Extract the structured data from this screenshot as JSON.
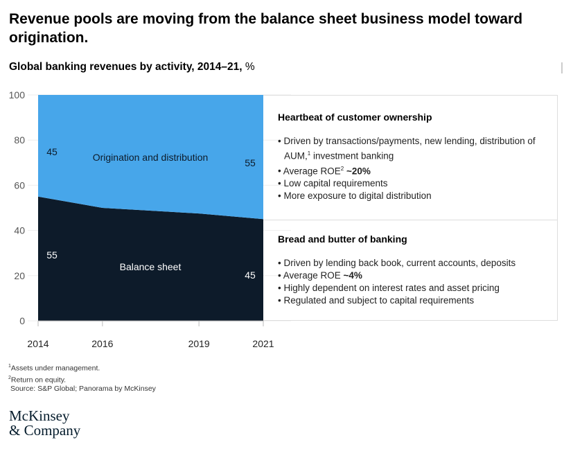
{
  "title": "Revenue pools are moving from the balance sheet business model toward origination.",
  "subtitle": "Global banking revenues by activity, 2014–21,",
  "subtitle_unit": "%",
  "chart_data": {
    "type": "area",
    "title": "Global banking revenues by activity, 2014–21, %",
    "x": [
      "2014",
      "2016",
      "2019",
      "2021"
    ],
    "x_numeric": [
      2014,
      2016,
      2019,
      2021
    ],
    "ylim": [
      0,
      100
    ],
    "yticks": [
      "0",
      "20",
      "40",
      "60",
      "80",
      "100"
    ],
    "series": [
      {
        "name": "Balance sheet",
        "values": [
          55,
          50,
          47.5,
          45
        ],
        "color": "#0d1b2a"
      },
      {
        "name": "Origination and distribution",
        "values": [
          45,
          50,
          52.5,
          55
        ],
        "color": "#47a6ea"
      }
    ],
    "labels": {
      "orig_start": "45",
      "orig_end": "55",
      "bs_start": "55",
      "bs_end": "45"
    },
    "grid": true
  },
  "panels": [
    {
      "heading": "Heartbeat of customer ownership",
      "items": [
        {
          "text": "Driven by transactions/payments, new lending, distribution of AUM,",
          "sup": "1",
          "after": " investment banking"
        },
        {
          "text": "Average ROE",
          "sup": "2",
          "bold": " ~20%"
        },
        {
          "text": "Low capital requirements"
        },
        {
          "text": "More exposure to digital distribution"
        }
      ]
    },
    {
      "heading": "Bread and butter of banking",
      "items": [
        {
          "text": "Driven by lending back book, current accounts, deposits"
        },
        {
          "text": "Average ROE",
          "bold": " ~4%"
        },
        {
          "text": "Highly dependent on interest rates and asset pricing"
        },
        {
          "text": "Regulated and subject to capital requirements"
        }
      ]
    }
  ],
  "footnotes": [
    {
      "sup": "1",
      "text": "Assets under management."
    },
    {
      "sup": "2",
      "text": "Return on equity."
    },
    {
      "sup": "",
      "text": "Source: S&P Global; Panorama by McKinsey"
    }
  ],
  "logo": [
    "McKinsey",
    "& Company"
  ]
}
